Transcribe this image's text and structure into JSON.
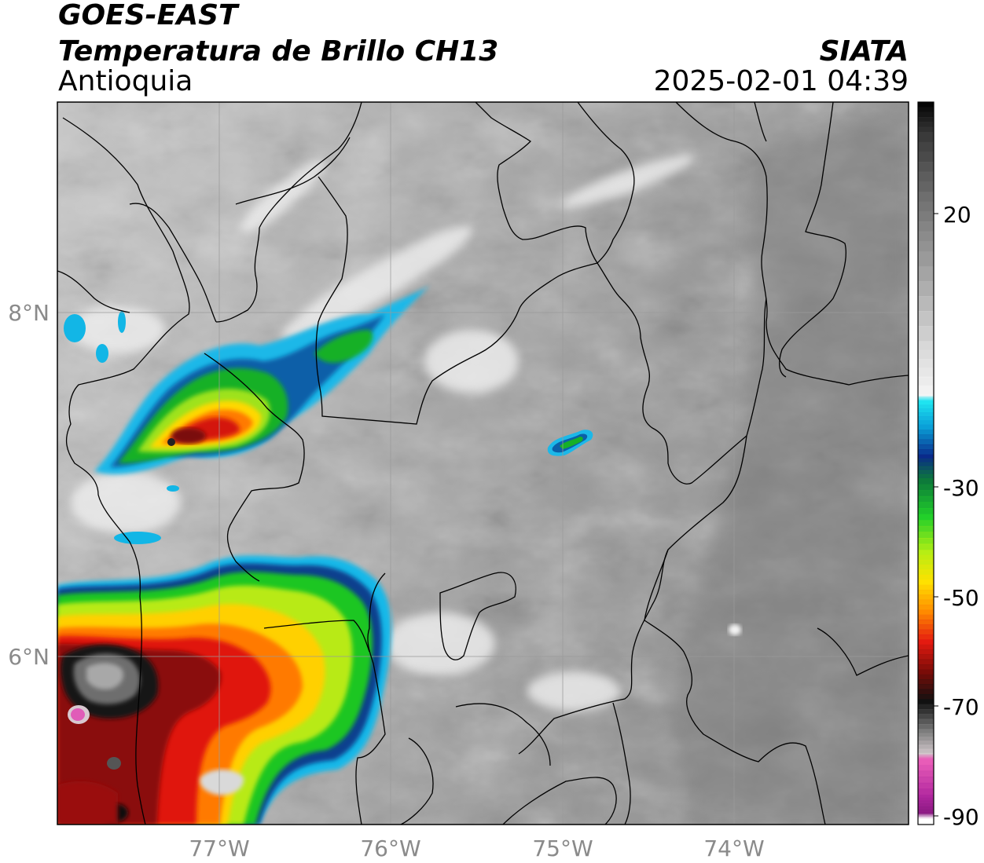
{
  "header": {
    "satellite": "GOES-EAST",
    "product": "Temperatura de Brillo CH13",
    "region": "Antioquia",
    "organization": "SIATA",
    "datetime": "2025-02-01 04:39"
  },
  "axes": {
    "x_ticks": [
      "77°W",
      "76°W",
      "75°W",
      "74°W"
    ],
    "y_ticks": [
      "8°N",
      "6°N"
    ]
  },
  "colorbar": {
    "tick_labels": [
      "20",
      "-30",
      "-50",
      "-70",
      "-90"
    ],
    "stops": [
      {
        "value": 30,
        "color": "#050505"
      },
      {
        "value": 25,
        "color": "#3a3a3a"
      },
      {
        "value": 15,
        "color": "#6e6e6e"
      },
      {
        "value": 5,
        "color": "#9a9a9a"
      },
      {
        "value": -10,
        "color": "#d8d8d8"
      },
      {
        "value": -19,
        "color": "#f6f6f6"
      },
      {
        "value": -20,
        "color": "#1fe3f0"
      },
      {
        "value": -24,
        "color": "#0aa0d8"
      },
      {
        "value": -29,
        "color": "#0a2a8a"
      },
      {
        "value": -33,
        "color": "#0d7a3a"
      },
      {
        "value": -39,
        "color": "#22d02a"
      },
      {
        "value": -45,
        "color": "#b6ee14"
      },
      {
        "value": -50,
        "color": "#ffe100"
      },
      {
        "value": -55,
        "color": "#ff8a00"
      },
      {
        "value": -60,
        "color": "#e41a10"
      },
      {
        "value": -65,
        "color": "#7a0c08"
      },
      {
        "value": -70,
        "color": "#111111"
      },
      {
        "value": -75,
        "color": "#7c7c7c"
      },
      {
        "value": -79,
        "color": "#d2c8cc"
      },
      {
        "value": -80,
        "color": "#e85cb8"
      },
      {
        "value": -86,
        "color": "#b0279e"
      },
      {
        "value": -89,
        "color": "#8a1a82"
      },
      {
        "value": -90,
        "color": "#ffffff"
      }
    ]
  }
}
